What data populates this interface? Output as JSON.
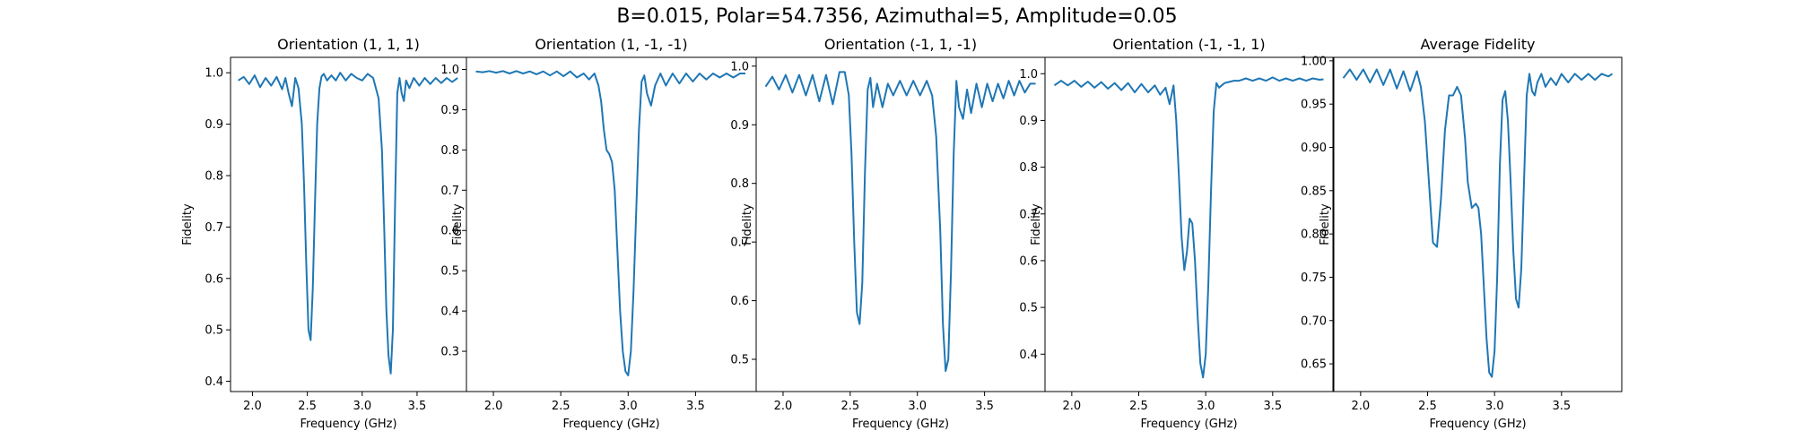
{
  "figure": {
    "suptitle": "B=0.015, Polar=54.7356, Azimuthal=5, Amplitude=0.05"
  },
  "line_color": "#1f77b4",
  "chart_data": [
    {
      "type": "line",
      "title": "Orientation (1, 1, 1)",
      "xlabel": "Frequency (GHz)",
      "ylabel": "Fidelity",
      "xlim": [
        1.8,
        3.95
      ],
      "ylim": [
        0.38,
        1.03
      ],
      "xticks": [
        2.0,
        2.5,
        3.0,
        3.5
      ],
      "xtick_labels": [
        "2.0",
        "2.5",
        "3.0",
        "3.5"
      ],
      "yticks": [
        0.4,
        0.5,
        0.6,
        0.7,
        0.8,
        0.9,
        1.0
      ],
      "ytick_labels": [
        "0.4",
        "0.5",
        "0.6",
        "0.7",
        "0.8",
        "0.9",
        "1.0"
      ],
      "series": [
        {
          "x": [
            1.87,
            1.92,
            1.97,
            2.02,
            2.07,
            2.12,
            2.17,
            2.22,
            2.27,
            2.3,
            2.33,
            2.36,
            2.39,
            2.42,
            2.45,
            2.47,
            2.49,
            2.51,
            2.53,
            2.55,
            2.57,
            2.59,
            2.61,
            2.63,
            2.65,
            2.68,
            2.72,
            2.76,
            2.8,
            2.85,
            2.9,
            2.95,
            3.0,
            3.05,
            3.1,
            3.15,
            3.18,
            3.2,
            3.22,
            3.24,
            3.26,
            3.28,
            3.3,
            3.32,
            3.34,
            3.36,
            3.38,
            3.4,
            3.43,
            3.47,
            3.52,
            3.57,
            3.62,
            3.67,
            3.72,
            3.77,
            3.82,
            3.87
          ],
          "y": [
            0.985,
            0.992,
            0.978,
            0.995,
            0.972,
            0.99,
            0.975,
            0.992,
            0.968,
            0.99,
            0.96,
            0.935,
            0.99,
            0.97,
            0.9,
            0.78,
            0.63,
            0.5,
            0.48,
            0.58,
            0.75,
            0.9,
            0.97,
            0.993,
            0.998,
            0.985,
            0.995,
            0.985,
            1.0,
            0.985,
            0.998,
            0.99,
            0.985,
            0.998,
            0.99,
            0.95,
            0.85,
            0.7,
            0.54,
            0.45,
            0.415,
            0.5,
            0.75,
            0.96,
            0.99,
            0.96,
            0.945,
            0.985,
            0.97,
            0.99,
            0.975,
            0.99,
            0.978,
            0.99,
            0.98,
            0.99,
            0.982,
            0.99
          ]
        }
      ]
    },
    {
      "type": "line",
      "title": "Orientation (1, -1, -1)",
      "xlabel": "Frequency (GHz)",
      "ylabel": "Fidelity",
      "xlim": [
        1.8,
        3.95
      ],
      "ylim": [
        0.2,
        1.03
      ],
      "xticks": [
        2.0,
        2.5,
        3.0,
        3.5
      ],
      "xtick_labels": [
        "2.0",
        "2.5",
        "3.0",
        "3.5"
      ],
      "yticks": [
        0.3,
        0.4,
        0.5,
        0.6,
        0.7,
        0.8,
        0.9,
        1.0
      ],
      "ytick_labels": [
        "0.3",
        "0.4",
        "0.5",
        "0.6",
        "0.7",
        "0.8",
        "0.9",
        "1.0"
      ],
      "series": [
        {
          "x": [
            1.87,
            1.92,
            1.97,
            2.02,
            2.07,
            2.12,
            2.17,
            2.22,
            2.27,
            2.32,
            2.37,
            2.42,
            2.47,
            2.52,
            2.57,
            2.62,
            2.67,
            2.71,
            2.75,
            2.78,
            2.8,
            2.82,
            2.84,
            2.86,
            2.88,
            2.9,
            2.92,
            2.94,
            2.96,
            2.98,
            3.0,
            3.02,
            3.04,
            3.06,
            3.08,
            3.1,
            3.12,
            3.14,
            3.17,
            3.2,
            3.24,
            3.28,
            3.33,
            3.38,
            3.43,
            3.48,
            3.53,
            3.58,
            3.63,
            3.68,
            3.73,
            3.78,
            3.83,
            3.87
          ],
          "y": [
            0.995,
            0.993,
            0.996,
            0.992,
            0.996,
            0.99,
            0.996,
            0.99,
            0.995,
            0.988,
            0.995,
            0.985,
            0.995,
            0.983,
            0.995,
            0.98,
            0.99,
            0.975,
            0.99,
            0.96,
            0.92,
            0.85,
            0.8,
            0.79,
            0.77,
            0.7,
            0.55,
            0.4,
            0.3,
            0.25,
            0.24,
            0.3,
            0.45,
            0.65,
            0.85,
            0.97,
            0.985,
            0.94,
            0.91,
            0.96,
            0.99,
            0.96,
            0.99,
            0.965,
            0.99,
            0.97,
            0.99,
            0.975,
            0.99,
            0.98,
            0.99,
            0.98,
            0.99,
            0.99
          ]
        }
      ]
    },
    {
      "type": "line",
      "title": "Orientation (-1, 1, -1)",
      "xlabel": "Frequency (GHz)",
      "ylabel": "Fidelity",
      "xlim": [
        1.8,
        3.95
      ],
      "ylim": [
        0.445,
        1.015
      ],
      "xticks": [
        2.0,
        2.5,
        3.0,
        3.5
      ],
      "xtick_labels": [
        "2.0",
        "2.5",
        "3.0",
        "3.5"
      ],
      "yticks": [
        0.5,
        0.6,
        0.7,
        0.8,
        0.9,
        1.0
      ],
      "ytick_labels": [
        "0.5",
        "0.6",
        "0.7",
        "0.8",
        "0.9",
        "1.0"
      ],
      "series": [
        {
          "x": [
            1.87,
            1.92,
            1.97,
            2.02,
            2.07,
            2.12,
            2.17,
            2.22,
            2.27,
            2.32,
            2.37,
            2.42,
            2.46,
            2.49,
            2.51,
            2.53,
            2.55,
            2.57,
            2.59,
            2.61,
            2.63,
            2.65,
            2.67,
            2.7,
            2.74,
            2.78,
            2.82,
            2.87,
            2.92,
            2.97,
            3.02,
            3.07,
            3.11,
            3.14,
            3.17,
            3.19,
            3.21,
            3.23,
            3.25,
            3.27,
            3.29,
            3.31,
            3.34,
            3.37,
            3.4,
            3.44,
            3.48,
            3.52,
            3.56,
            3.6,
            3.64,
            3.68,
            3.72,
            3.76,
            3.8,
            3.84,
            3.88
          ],
          "y": [
            0.965,
            0.982,
            0.96,
            0.985,
            0.955,
            0.985,
            0.95,
            0.985,
            0.94,
            0.985,
            0.935,
            0.99,
            0.99,
            0.95,
            0.85,
            0.7,
            0.58,
            0.56,
            0.63,
            0.82,
            0.96,
            0.98,
            0.93,
            0.97,
            0.93,
            0.97,
            0.95,
            0.975,
            0.95,
            0.975,
            0.95,
            0.975,
            0.95,
            0.88,
            0.72,
            0.56,
            0.48,
            0.5,
            0.65,
            0.85,
            0.975,
            0.93,
            0.91,
            0.96,
            0.92,
            0.97,
            0.93,
            0.97,
            0.94,
            0.97,
            0.945,
            0.975,
            0.95,
            0.975,
            0.955,
            0.97,
            0.97
          ]
        }
      ]
    },
    {
      "type": "line",
      "title": "Orientation (-1, -1, 1)",
      "xlabel": "Frequency (GHz)",
      "ylabel": "Fidelity",
      "xlim": [
        1.8,
        3.95
      ],
      "ylim": [
        0.32,
        1.035
      ],
      "xticks": [
        2.0,
        2.5,
        3.0,
        3.5
      ],
      "xtick_labels": [
        "2.0",
        "2.5",
        "3.0",
        "3.5"
      ],
      "yticks": [
        0.4,
        0.5,
        0.6,
        0.7,
        0.8,
        0.9,
        1.0
      ],
      "ytick_labels": [
        "0.4",
        "0.5",
        "0.6",
        "0.7",
        "0.8",
        "0.9",
        "1.0"
      ],
      "series": [
        {
          "x": [
            1.87,
            1.92,
            1.97,
            2.02,
            2.07,
            2.12,
            2.17,
            2.22,
            2.27,
            2.32,
            2.37,
            2.42,
            2.47,
            2.52,
            2.57,
            2.62,
            2.66,
            2.7,
            2.73,
            2.76,
            2.78,
            2.8,
            2.82,
            2.84,
            2.86,
            2.88,
            2.9,
            2.92,
            2.94,
            2.96,
            2.98,
            3.0,
            3.02,
            3.04,
            3.06,
            3.08,
            3.1,
            3.12,
            3.14,
            3.17,
            3.21,
            3.25,
            3.3,
            3.35,
            3.4,
            3.45,
            3.5,
            3.55,
            3.6,
            3.65,
            3.7,
            3.75,
            3.8,
            3.85,
            3.88
          ],
          "y": [
            0.975,
            0.985,
            0.975,
            0.985,
            0.972,
            0.983,
            0.97,
            0.982,
            0.968,
            0.98,
            0.965,
            0.98,
            0.96,
            0.978,
            0.96,
            0.975,
            0.955,
            0.97,
            0.935,
            0.975,
            0.9,
            0.78,
            0.65,
            0.58,
            0.62,
            0.69,
            0.68,
            0.6,
            0.48,
            0.38,
            0.35,
            0.4,
            0.55,
            0.75,
            0.92,
            0.98,
            0.97,
            0.975,
            0.98,
            0.982,
            0.985,
            0.985,
            0.99,
            0.985,
            0.99,
            0.985,
            0.992,
            0.985,
            0.99,
            0.985,
            0.99,
            0.985,
            0.99,
            0.987,
            0.988
          ]
        }
      ]
    },
    {
      "type": "line",
      "title": "Average Fidelity",
      "xlabel": "Frequency (GHz)",
      "ylabel": "Fidelity",
      "xlim": [
        1.8,
        3.95
      ],
      "ylim": [
        0.618,
        1.004
      ],
      "xticks": [
        2.0,
        2.5,
        3.0,
        3.5
      ],
      "xtick_labels": [
        "2.0",
        "2.5",
        "3.0",
        "3.5"
      ],
      "yticks": [
        0.65,
        0.7,
        0.75,
        0.8,
        0.85,
        0.9,
        0.95,
        1.0
      ],
      "ytick_labels": [
        "0.65",
        "0.70",
        "0.75",
        "0.80",
        "0.85",
        "0.90",
        "0.95",
        "1.00"
      ],
      "series": [
        {
          "x": [
            1.87,
            1.92,
            1.97,
            2.02,
            2.07,
            2.12,
            2.17,
            2.22,
            2.27,
            2.32,
            2.37,
            2.42,
            2.45,
            2.48,
            2.51,
            2.54,
            2.57,
            2.6,
            2.63,
            2.66,
            2.69,
            2.72,
            2.75,
            2.78,
            2.8,
            2.83,
            2.86,
            2.88,
            2.9,
            2.92,
            2.94,
            2.96,
            2.98,
            3.0,
            3.02,
            3.04,
            3.06,
            3.08,
            3.1,
            3.12,
            3.14,
            3.16,
            3.18,
            3.2,
            3.22,
            3.24,
            3.26,
            3.28,
            3.3,
            3.32,
            3.35,
            3.38,
            3.42,
            3.46,
            3.5,
            3.55,
            3.6,
            3.65,
            3.7,
            3.75,
            3.8,
            3.85,
            3.88
          ],
          "y": [
            0.98,
            0.99,
            0.978,
            0.99,
            0.975,
            0.99,
            0.972,
            0.99,
            0.968,
            0.988,
            0.965,
            0.988,
            0.97,
            0.93,
            0.86,
            0.79,
            0.785,
            0.84,
            0.92,
            0.96,
            0.96,
            0.97,
            0.96,
            0.91,
            0.86,
            0.83,
            0.835,
            0.83,
            0.8,
            0.74,
            0.68,
            0.64,
            0.635,
            0.665,
            0.75,
            0.88,
            0.955,
            0.965,
            0.93,
            0.86,
            0.78,
            0.725,
            0.715,
            0.76,
            0.86,
            0.96,
            0.985,
            0.965,
            0.96,
            0.975,
            0.985,
            0.97,
            0.98,
            0.972,
            0.985,
            0.975,
            0.985,
            0.978,
            0.985,
            0.978,
            0.985,
            0.982,
            0.985
          ]
        }
      ]
    }
  ]
}
